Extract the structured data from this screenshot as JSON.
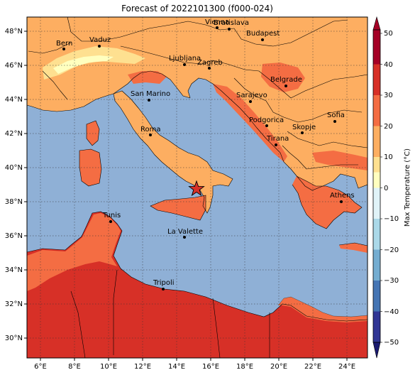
{
  "title": "Forecast of 2022101300 (f000-024)",
  "x_ticks": [
    "6°E",
    "8°E",
    "10°E",
    "12°E",
    "14°E",
    "16°E",
    "18°E",
    "20°E",
    "22°E",
    "24°E"
  ],
  "y_ticks": [
    "48°N",
    "46°N",
    "44°N",
    "42°N",
    "40°N",
    "38°N",
    "36°N",
    "34°N",
    "32°N",
    "30°N"
  ],
  "colorbar": {
    "label": "Max Temperature (°C)",
    "ticks": [
      "50",
      "40",
      "30",
      "20",
      "10",
      "0",
      "−10",
      "−20",
      "−30",
      "−40",
      "−50"
    ],
    "colors": [
      "#a50026",
      "#d73027",
      "#f46d43",
      "#fdae61",
      "#fee090",
      "#ffffbf",
      "#e0f3f8",
      "#abd9e9",
      "#74add1",
      "#4575b4",
      "#313695"
    ]
  },
  "cities": [
    {
      "name": "Bern"
    },
    {
      "name": "Vaduz"
    },
    {
      "name": "Vienna"
    },
    {
      "name": "Bratislava"
    },
    {
      "name": "Budapest"
    },
    {
      "name": "Ljubljana"
    },
    {
      "name": "Zagreb"
    },
    {
      "name": "Belgrade"
    },
    {
      "name": "San Marino"
    },
    {
      "name": "Sarajevo"
    },
    {
      "name": "Podgorica"
    },
    {
      "name": "Sofia"
    },
    {
      "name": "Skopje"
    },
    {
      "name": "Roma"
    },
    {
      "name": "Tirana"
    },
    {
      "name": "Athens"
    },
    {
      "name": "Tunis"
    },
    {
      "name": "La Valette"
    },
    {
      "name": "Tripoli"
    }
  ],
  "marker": "star-icon"
}
